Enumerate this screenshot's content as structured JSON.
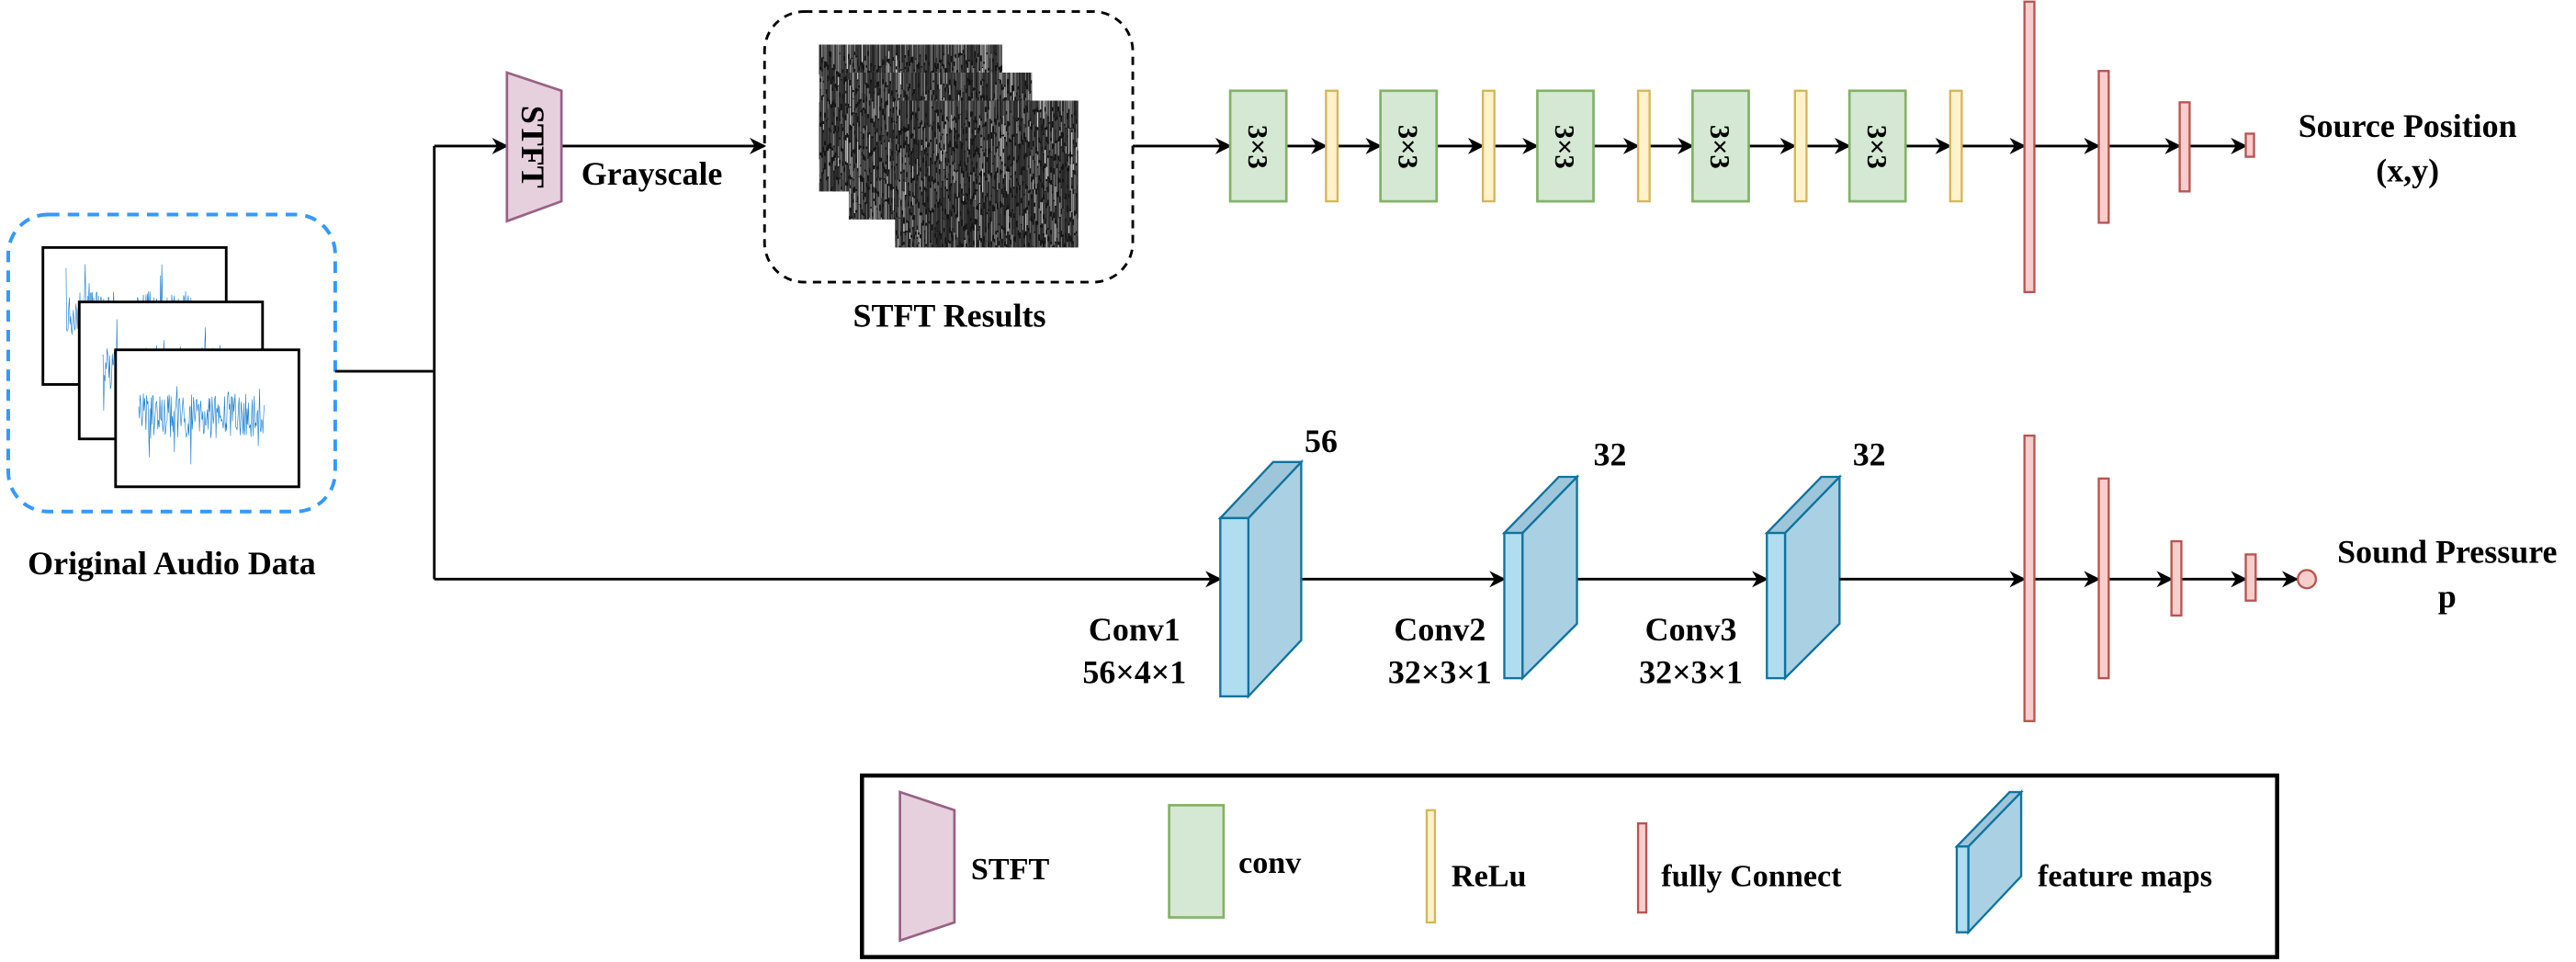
{
  "input": {
    "label": "Original Audio Data"
  },
  "stft": {
    "label": "STFT",
    "output_label": "Grayscale",
    "results_label": "STFT Results"
  },
  "top_branch": {
    "conv_kernels": [
      "3×3",
      "3×3",
      "3×3",
      "3×3",
      "3×3"
    ],
    "output_label": "Source Position",
    "output_sub": "(x,y)"
  },
  "bottom_branch": {
    "layers": [
      {
        "name": "Conv1",
        "shape": "56×4×1",
        "channels": "56"
      },
      {
        "name": "Conv2",
        "shape": "32×3×1",
        "channels": "32"
      },
      {
        "name": "Conv3",
        "shape": "32×3×1",
        "channels": "32"
      }
    ],
    "output_label": "Sound Pressure",
    "output_sub": "p"
  },
  "legend": {
    "items": [
      {
        "label": "STFT"
      },
      {
        "label": "conv"
      },
      {
        "label": "ReLu"
      },
      {
        "label": "fully Connect"
      },
      {
        "label": "feature maps"
      }
    ]
  },
  "colors": {
    "audio_border": "#3399ff",
    "waveform": "#1a7fcf",
    "stft_fill": "#e6d0de",
    "stft_stroke": "#996185",
    "conv_fill": "#d5e8d4",
    "conv_stroke": "#82b366",
    "relu_fill": "#fff2cc",
    "relu_stroke": "#d6b656",
    "fc_fill": "#f8cecc",
    "fc_stroke": "#b85450",
    "fmap_front": "#b1ddf0",
    "fmap_side": "#a9d1e3",
    "fmap_stroke": "#10739e"
  }
}
